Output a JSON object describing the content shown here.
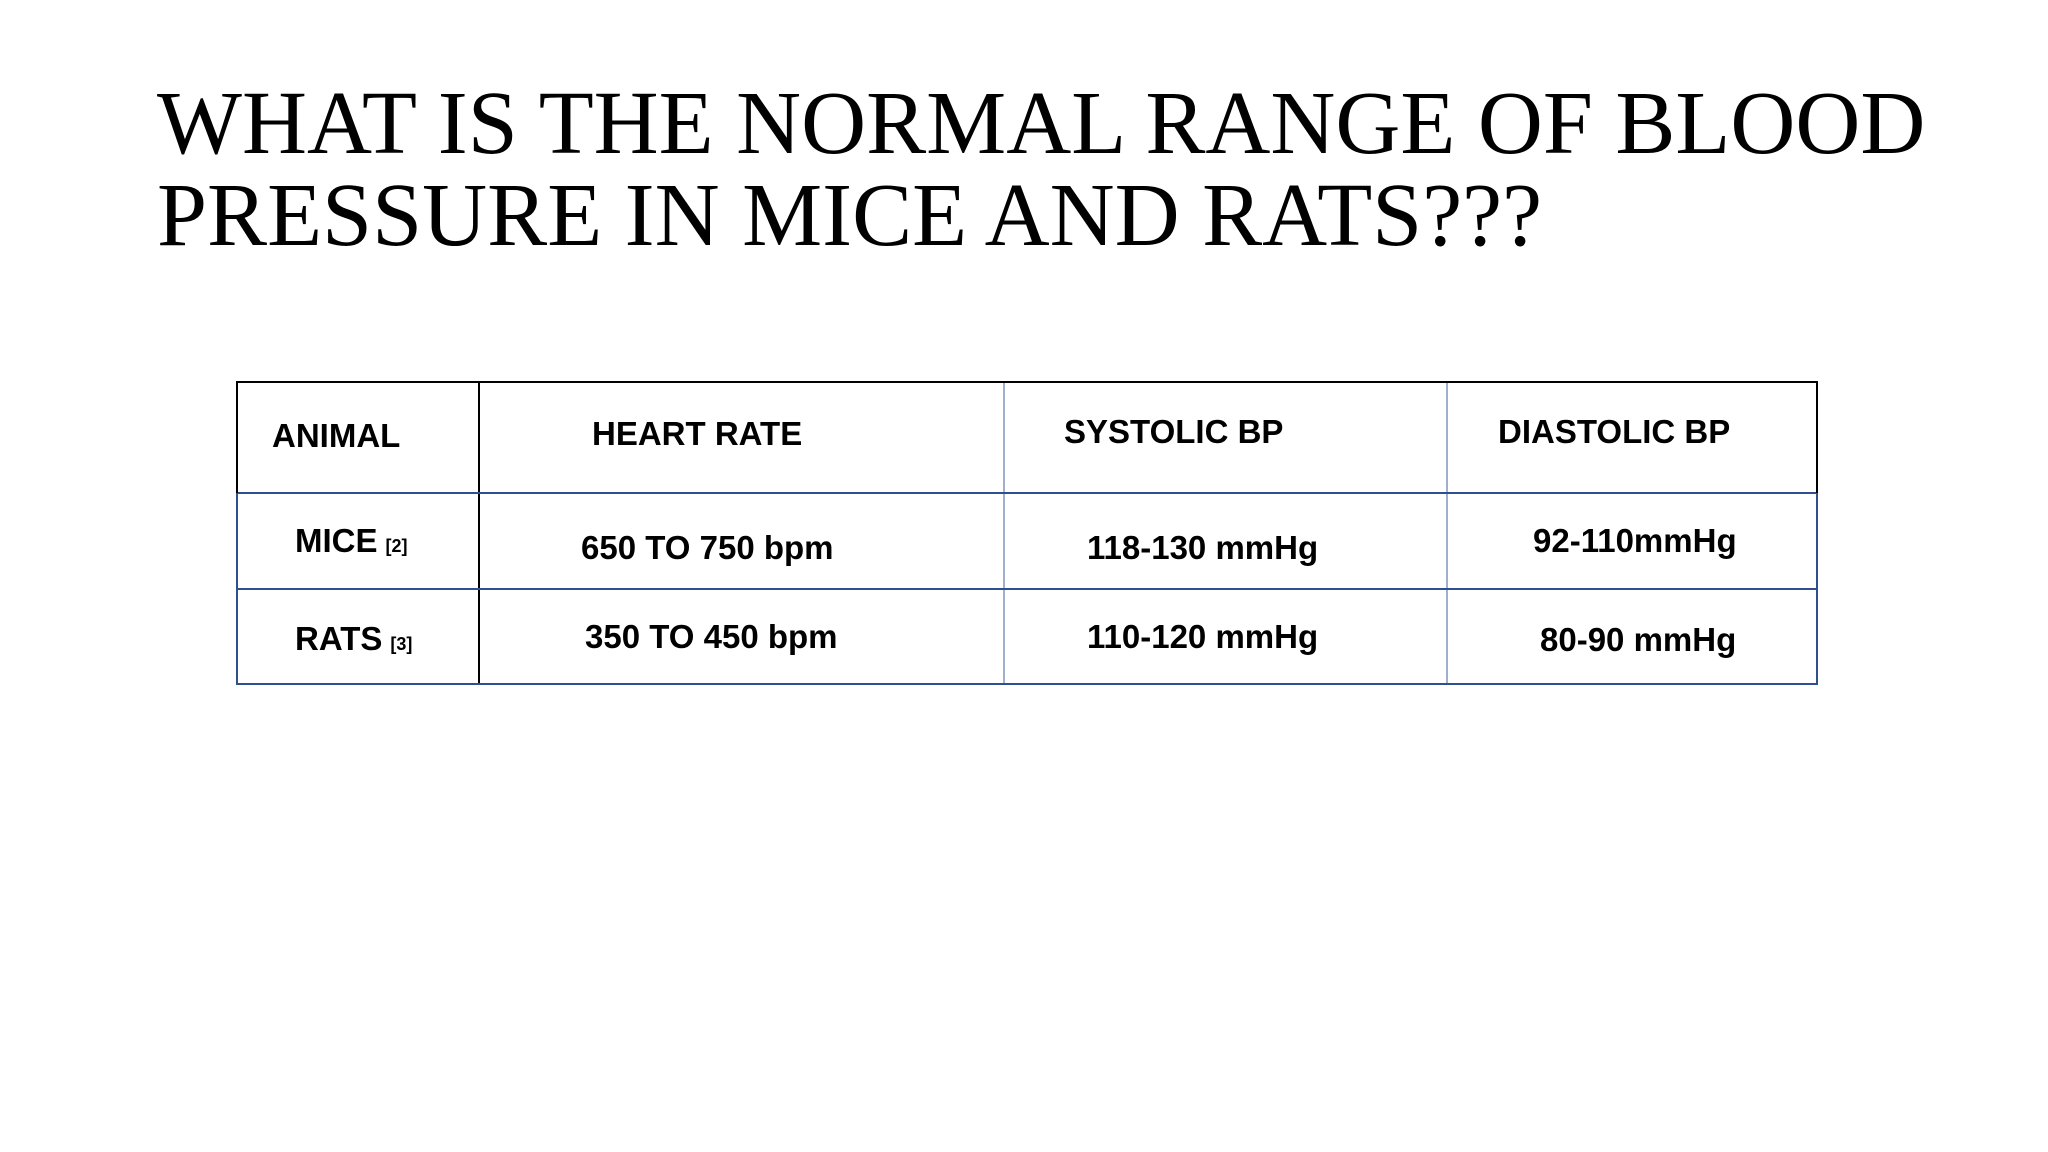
{
  "title": [
    "WHAT IS THE NORMAL RANGE OF BLOOD",
    "PRESSURE IN MICE AND RATS???"
  ],
  "table": {
    "headers": [
      "ANIMAL",
      "HEART RATE",
      "SYSTOLIC BP",
      "DIASTOLIC BP"
    ],
    "rows": [
      {
        "animal": "MICE",
        "ref": "[2]",
        "heart_rate": "650 TO 750 bpm",
        "systolic": "118-130 mmHg",
        "diastolic": "92-110mmHg"
      },
      {
        "animal": "RATS",
        "ref": "[3]",
        "heart_rate": "350 TO 450 bpm",
        "systolic": "110-120 mmHg",
        "diastolic": "80-90 mmHg"
      }
    ]
  }
}
